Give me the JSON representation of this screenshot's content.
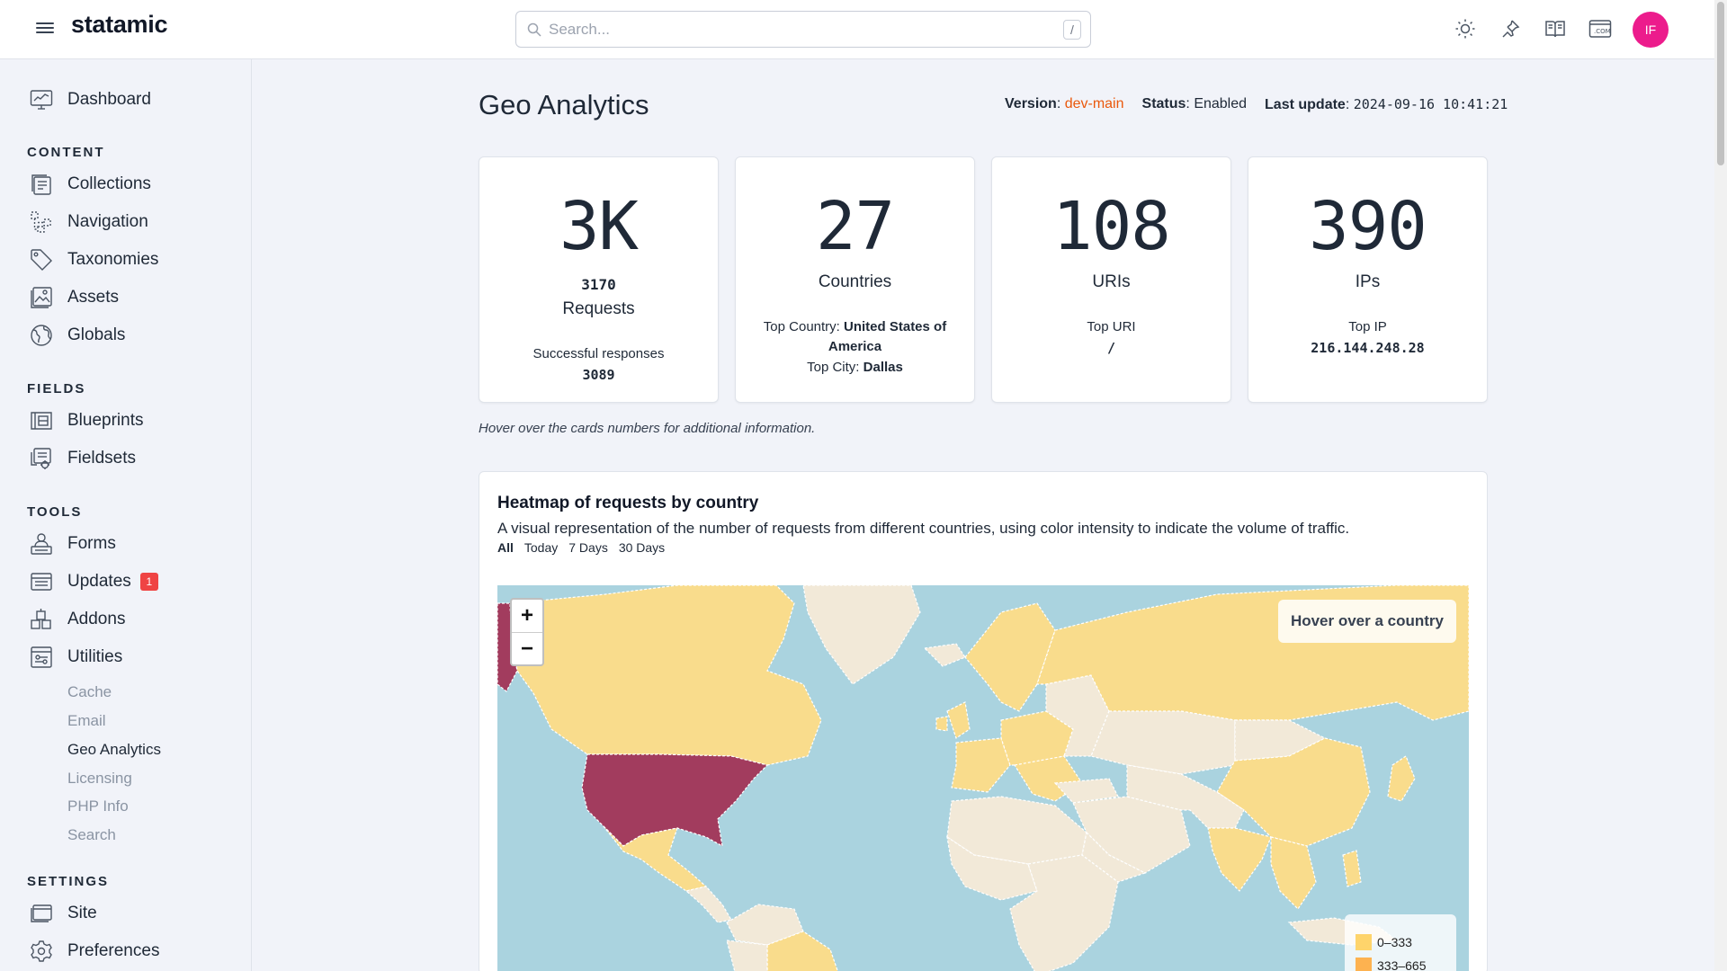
{
  "app": {
    "brand": "statamic",
    "avatar_initials": "IF"
  },
  "search": {
    "placeholder": "Search...",
    "shortcut": "/"
  },
  "top_icons": [
    "sun-icon",
    "pin-icon",
    "book-icon",
    "dotcom-icon"
  ],
  "sidebar": {
    "dashboard": "Dashboard",
    "sections": {
      "content": "CONTENT",
      "fields": "FIELDS",
      "tools": "TOOLS",
      "settings": "SETTINGS"
    },
    "content_items": [
      "Collections",
      "Navigation",
      "Taxonomies",
      "Assets",
      "Globals"
    ],
    "fields_items": [
      "Blueprints",
      "Fieldsets"
    ],
    "tools_items": [
      "Forms",
      "Updates",
      "Addons",
      "Utilities"
    ],
    "updates_badge": "1",
    "utilities_sub": [
      "Cache",
      "Email",
      "Geo Analytics",
      "Licensing",
      "PHP Info",
      "Search"
    ],
    "settings_items": [
      "Site",
      "Preferences"
    ]
  },
  "page": {
    "title": "Geo Analytics",
    "version_label": "Version",
    "version_value": "dev-main",
    "status_label": "Status",
    "status_value": "Enabled",
    "last_update_label": "Last update",
    "last_update_value": "2024-09-16 10:41:21"
  },
  "cards": {
    "requests": {
      "big": "3K",
      "exact": "3170",
      "label": "Requests",
      "sub_label": "Successful responses",
      "sub_value": "3089"
    },
    "countries": {
      "big": "27",
      "label": "Countries",
      "top_country_label": "Top Country:",
      "top_country_value": "United States of America",
      "top_city_label": "Top City:",
      "top_city_value": "Dallas"
    },
    "uris": {
      "big": "108",
      "label": "URIs",
      "sub_label": "Top URI",
      "sub_value": "/"
    },
    "ips": {
      "big": "390",
      "label": "IPs",
      "sub_label": "Top IP",
      "sub_value": "216.144.248.28"
    }
  },
  "hint": "Hover over the cards numbers for additional information.",
  "heatmap": {
    "title": "Heatmap of requests by country",
    "description": "A visual representation of the number of requests from different countries, using color intensity to indicate the volume of traffic.",
    "filters": [
      "All",
      "Today",
      "7 Days",
      "30 Days"
    ],
    "active_filter": "All",
    "zoom_in": "+",
    "zoom_out": "−",
    "hover_text": "Hover over a country",
    "legend": [
      {
        "label": "0–333",
        "color": "#fed46b"
      },
      {
        "label": "333–665",
        "color": "#fdb250"
      }
    ],
    "colors": {
      "ocean": "#aad3df",
      "no_data": "#f2e9d8",
      "low": "#f9dc8c",
      "high": "#a23c5e"
    }
  }
}
